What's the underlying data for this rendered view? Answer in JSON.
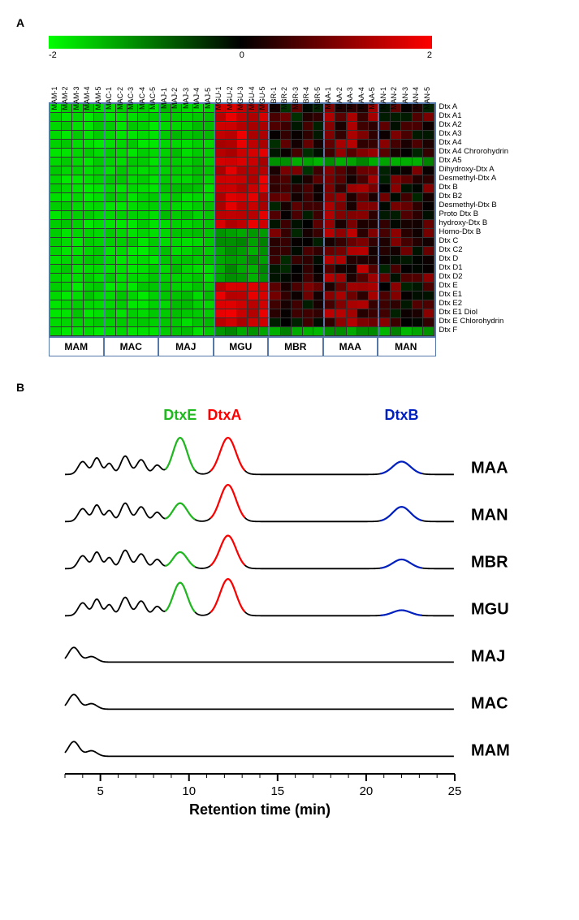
{
  "panelA": {
    "label": "A",
    "colorbar": {
      "min": -2.0,
      "mid": 0.0,
      "max": 2.0,
      "gradient_colors": [
        "#00ff00",
        "#008000",
        "#000000",
        "#800000",
        "#ff0000"
      ]
    },
    "groups": [
      "MAM",
      "MAC",
      "MAJ",
      "MGU",
      "MBR",
      "MAA",
      "MAN"
    ],
    "columns": [
      "MAM-1",
      "MAM-2",
      "MAM-3",
      "MAM-4",
      "MAM-5",
      "MAC-1",
      "MAC-2",
      "MAC-3",
      "MAC-4",
      "MAC-5",
      "MAJ-1",
      "MAJ-2",
      "MAJ-3",
      "MAJ-4",
      "MAJ-5",
      "MGU-1",
      "MGU-2",
      "MGU-3",
      "MGU-4",
      "MGU-5",
      "MBR-1",
      "MBR-2",
      "MBR-3",
      "MBR-4",
      "MBR-5",
      "MAA-1",
      "MAA-2",
      "MAA-3",
      "MAA-4",
      "MAA-5",
      "MAN-1",
      "MAN-2",
      "MAN-3",
      "MAN-4",
      "MAN-5"
    ],
    "rows": [
      "Dtx A",
      "Dtx A1",
      "Dtx A2",
      "Dtx A3",
      "Dtx A4",
      "Dtx A4 Chrorohydrin",
      "Dtx A5",
      "Dihydroxy-Dtx A",
      "Desmethyl-Dtx A",
      "Dtx B",
      "Dtx B2",
      "Desmethyl-Dtx B",
      "Proto Dtx B",
      "hydroxy-Dtx B",
      "Homo-Dtx B",
      "Dtx C",
      "Dtx C2",
      "Dtx D",
      "Dtx D1",
      "Dtx D2",
      "Dtx E",
      "Dtx E1",
      "Dtx E2",
      "Dtx E1 Diol",
      "Dtx E Chlorohydrin",
      "Dtx F"
    ],
    "values_comment": "Approximate z-scores per cell; MAM/MAC/MAJ ~ -1.5 to -2.0 (green), MGU ~ 1.0 to 2.0 (red), MBR/MAA/MAN ~ -0.5 to 1.5 mixed",
    "group_base_values": {
      "MAM": -1.7,
      "MAC": -1.7,
      "MAJ": -1.6,
      "MGU": 1.6,
      "MBR": 0.3,
      "MAA": 0.8,
      "MAN": 0.4
    },
    "group_border_color": "#5577aa",
    "cell_border_color": "#333333",
    "label_fontsize": 10
  },
  "panelB": {
    "label": "B",
    "peak_labels": [
      {
        "text": "DtxE",
        "color": "#1fb81f",
        "x": 9.5
      },
      {
        "text": "DtxA",
        "color": "#ff0000",
        "x": 12
      },
      {
        "text": "DtxB",
        "color": "#0020c0",
        "x": 22
      }
    ],
    "traces": [
      {
        "name": "MAA",
        "peaks": {
          "DtxE": 1.0,
          "DtxA": 1.0,
          "DtxB": 0.35
        },
        "has_peaks": true
      },
      {
        "name": "MAN",
        "peaks": {
          "DtxE": 0.5,
          "DtxA": 1.0,
          "DtxB": 0.4
        },
        "has_peaks": true
      },
      {
        "name": "MBR",
        "peaks": {
          "DtxE": 0.45,
          "DtxA": 0.9,
          "DtxB": 0.25
        },
        "has_peaks": true
      },
      {
        "name": "MGU",
        "peaks": {
          "DtxE": 0.9,
          "DtxA": 1.0,
          "DtxB": 0.15
        },
        "has_peaks": true
      },
      {
        "name": "MAJ",
        "peaks": {},
        "has_peaks": false
      },
      {
        "name": "MAC",
        "peaks": {},
        "has_peaks": false
      },
      {
        "name": "MAM",
        "peaks": {},
        "has_peaks": false
      }
    ],
    "peak_colors": {
      "DtxE": "#1fb81f",
      "DtxA": "#ff0000",
      "DtxB": "#0020c0"
    },
    "peak_positions": {
      "DtxE": 9.5,
      "DtxA": 12.2,
      "DtxB": 22
    },
    "x_axis": {
      "label": "Retention time (min)",
      "ticks": [
        5,
        10,
        15,
        20,
        25
      ],
      "min": 3,
      "max": 25
    },
    "trace_color": "#000000",
    "label_fontsize": 20,
    "axis_fontsize": 18
  }
}
